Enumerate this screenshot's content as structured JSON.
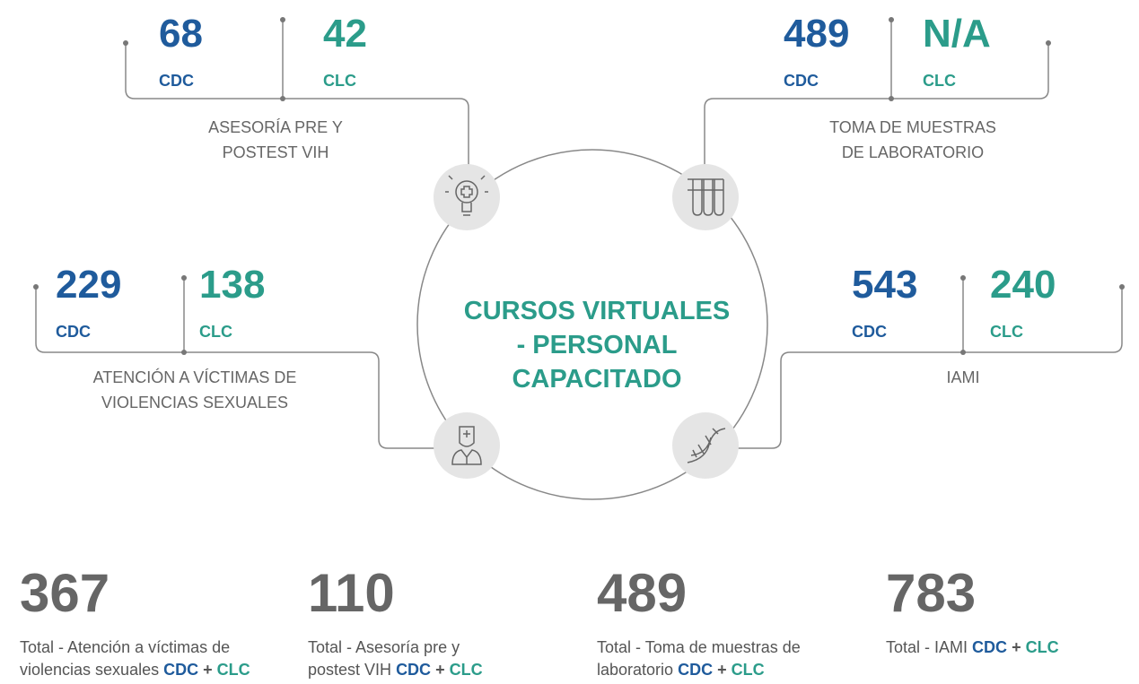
{
  "center": {
    "title_lines": [
      "CURSOS VIRTUALES",
      "- PERSONAL",
      "CAPACITADO"
    ]
  },
  "sections": [
    {
      "cdc": 68,
      "cdc_label": "CDC",
      "clc": 42,
      "clc_label": "CLC",
      "label_lines": [
        "ASESORÍA PRE Y",
        "POSTEST VIH"
      ]
    },
    {
      "cdc": 489,
      "cdc_label": "CDC",
      "clc": "N/A",
      "clc_label": "CLC",
      "label_lines": [
        "TOMA DE MUESTRAS",
        "DE LABORATORIO"
      ]
    },
    {
      "cdc": 229,
      "cdc_label": "CDC",
      "clc": 138,
      "clc_label": "CLC",
      "label_lines": [
        "ATENCIÓN A VÍCTIMAS DE",
        "VIOLENCIAS SEXUALES"
      ]
    },
    {
      "cdc": 543,
      "cdc_label": "CDC",
      "clc": 240,
      "clc_label": "CLC",
      "label_lines": [
        "IAMI"
      ]
    }
  ],
  "totals": [
    {
      "value": 367,
      "text": "Total - Atención a víctimas de violencias sexuales",
      "cdc": "CDC",
      "plus": "+",
      "clc": "CLC"
    },
    {
      "value": 110,
      "text": "Total - Asesoría pre y postest VIH",
      "cdc": "CDC",
      "plus": "+",
      "clc": "CLC"
    },
    {
      "value": 489,
      "text": "Total - Toma de muestras de laboratorio",
      "cdc": "CDC",
      "plus": "+",
      "clc": "CLC"
    },
    {
      "value": 783,
      "text": "Total - IAMI",
      "cdc": "CDC",
      "plus": "+",
      "clc": "CLC"
    }
  ]
}
